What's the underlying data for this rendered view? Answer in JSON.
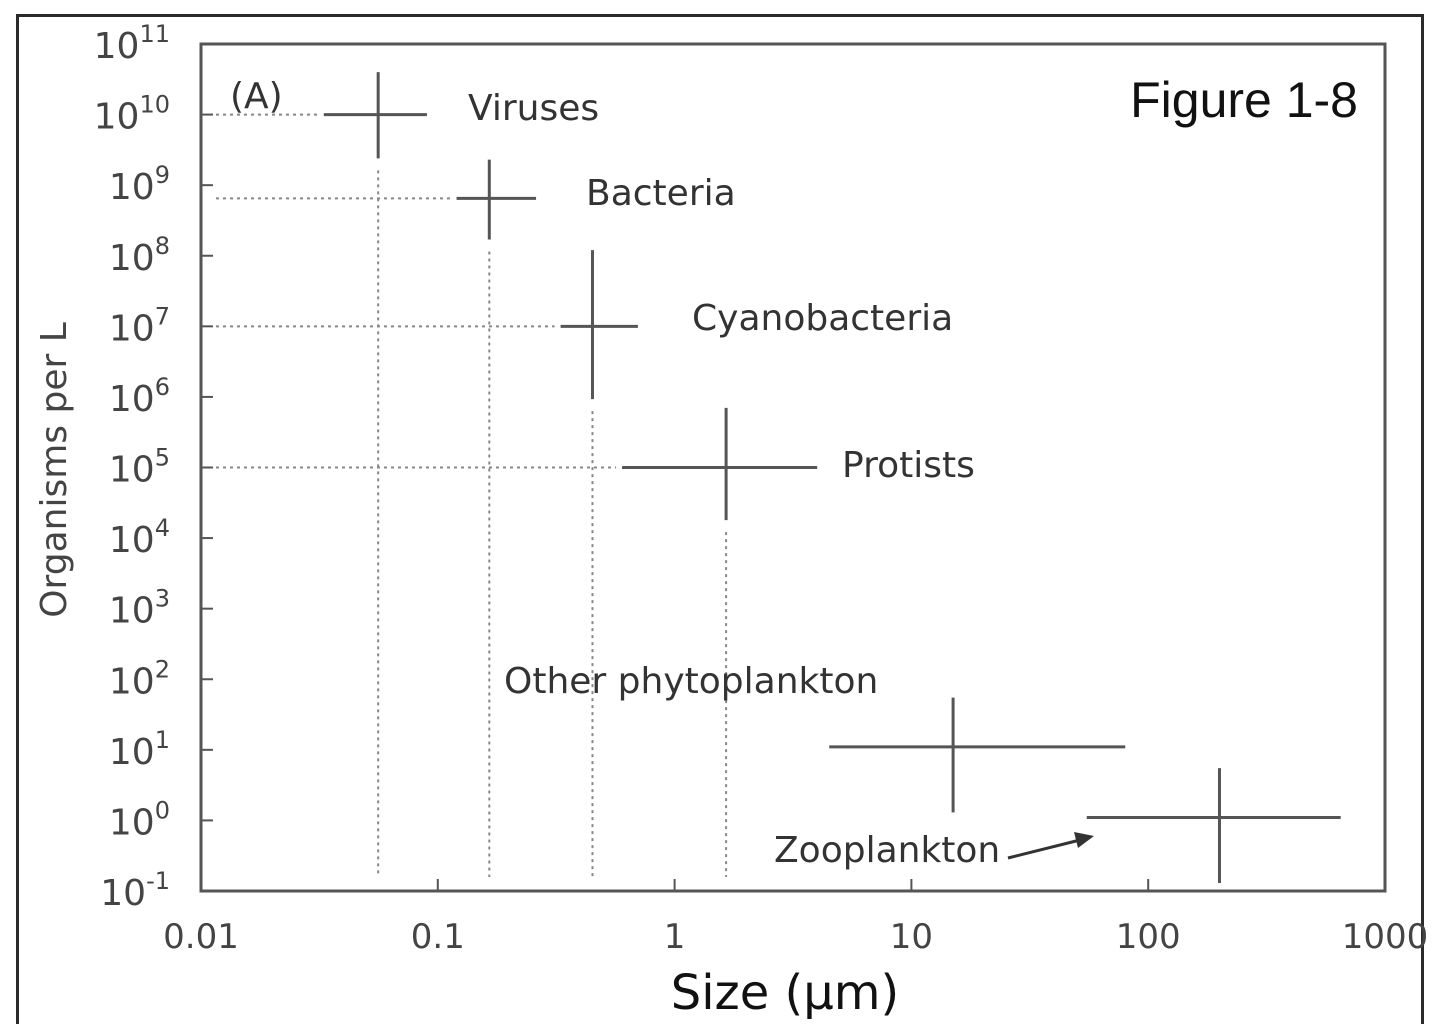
{
  "chart_data": {
    "type": "scatter",
    "figure_label": "Figure 1-8",
    "panel_label": "(A)",
    "xlabel": "Size (μm)",
    "ylabel": "Organisms per L",
    "x_scale": "log",
    "y_scale": "log",
    "xlim": [
      0.01,
      1000
    ],
    "ylim": [
      0.1,
      100000000000
    ],
    "x_ticks": [
      {
        "value": 0.01,
        "label": "0.01"
      },
      {
        "value": 0.1,
        "label": "0.1"
      },
      {
        "value": 1,
        "label": "1"
      },
      {
        "value": 10,
        "label": "10"
      },
      {
        "value": 100,
        "label": "100"
      },
      {
        "value": 1000,
        "label": "1000"
      }
    ],
    "y_ticks": [
      {
        "value": 0.1,
        "base": "10",
        "exp": "-1"
      },
      {
        "value": 1,
        "base": "10",
        "exp": "0"
      },
      {
        "value": 10,
        "base": "10",
        "exp": "1"
      },
      {
        "value": 100,
        "base": "10",
        "exp": "2"
      },
      {
        "value": 1000,
        "base": "10",
        "exp": "3"
      },
      {
        "value": 10000,
        "base": "10",
        "exp": "4"
      },
      {
        "value": 100000,
        "base": "10",
        "exp": "5"
      },
      {
        "value": 1000000,
        "base": "10",
        "exp": "6"
      },
      {
        "value": 10000000,
        "base": "10",
        "exp": "7"
      },
      {
        "value": 100000000,
        "base": "10",
        "exp": "8"
      },
      {
        "value": 1000000000,
        "base": "10",
        "exp": "9"
      },
      {
        "value": 10000000000,
        "base": "10",
        "exp": "10"
      },
      {
        "value": 100000000000,
        "base": "10",
        "exp": "11"
      }
    ],
    "grid": false,
    "points": [
      {
        "label": "Viruses",
        "x": 0.056,
        "y": 10000000000,
        "x_range": [
          0.033,
          0.09
        ],
        "y_range": [
          2400000000,
          40000000000
        ],
        "guides": true
      },
      {
        "label": "Bacteria",
        "x": 0.165,
        "y": 650000000,
        "x_range": [
          0.12,
          0.26
        ],
        "y_range": [
          170000000,
          2300000000
        ],
        "guides": true
      },
      {
        "label": "Cyanobacteria",
        "x": 0.45,
        "y": 10000000,
        "x_range": [
          0.33,
          0.7
        ],
        "y_range": [
          930000,
          120000000
        ],
        "guides": true
      },
      {
        "label": "Protists",
        "x": 1.65,
        "y": 100000,
        "x_range": [
          0.6,
          4.0
        ],
        "y_range": [
          18000,
          700000
        ],
        "guides": true
      },
      {
        "label": "Other phytoplankton",
        "x": 15,
        "y": 11,
        "x_range": [
          4.5,
          80
        ],
        "y_range": [
          1.3,
          55
        ],
        "guides": false
      },
      {
        "label": "Zooplankton",
        "x": 200,
        "y": 1.1,
        "x_range": [
          55,
          650
        ],
        "y_range": [
          0.13,
          5.5
        ],
        "guides": false
      }
    ]
  }
}
